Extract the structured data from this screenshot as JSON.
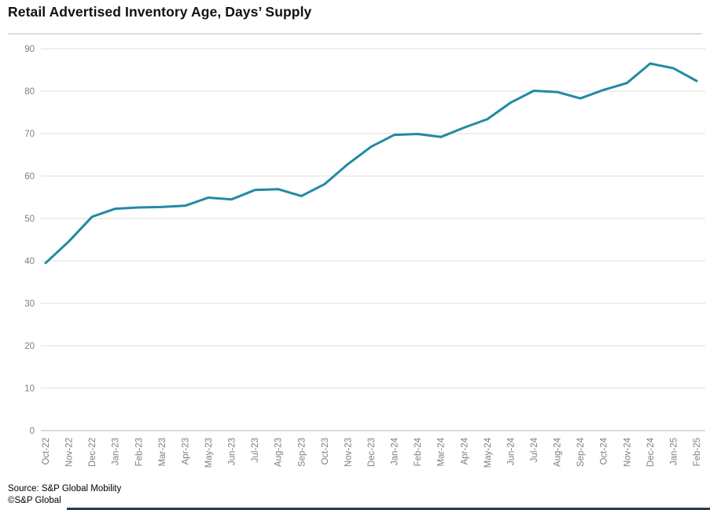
{
  "title": "Retail Advertised Inventory Age, Days’ Supply",
  "footer": {
    "source_line": "Source: S&P Global Mobility",
    "copyright_line": "©S&P Global"
  },
  "colors": {
    "line": "#228AA4",
    "gridline": "#e4e4e4",
    "axis_line": "#c8c8c8",
    "tick_label": "#7f7f7f",
    "footer_bar": "#2b3a55"
  },
  "chart_data": {
    "type": "line",
    "title": "Retail Advertised Inventory Age, Days’ Supply",
    "x": [
      "Oct-22",
      "Nov-22",
      "Dec-22",
      "Jan-23",
      "Feb-23",
      "Mar-23",
      "Apr-23",
      "May-23",
      "Jun-23",
      "Jul-23",
      "Aug-23",
      "Sep-23",
      "Oct-23",
      "Nov-23",
      "Dec-23",
      "Jan-24",
      "Feb-24",
      "Mar-24",
      "Apr-24",
      "May-24",
      "Jun-24",
      "Jul-24",
      "Aug-24",
      "Sep-24",
      "Oct-24",
      "Nov-24",
      "Dec-24",
      "Jan-25",
      "Feb-25"
    ],
    "values": [
      39.5,
      44.6,
      50.4,
      52.3,
      52.6,
      52.7,
      53.0,
      54.9,
      54.5,
      56.7,
      56.9,
      55.3,
      58.1,
      62.8,
      66.9,
      69.7,
      69.9,
      69.2,
      71.4,
      73.4,
      77.3,
      80.1,
      79.8,
      78.3,
      80.3,
      81.9,
      86.5,
      85.4,
      82.4
    ],
    "ylim": [
      0,
      90
    ],
    "ytick_step": 10,
    "xlabel": "",
    "ylabel": "",
    "grid": "horizontal",
    "legend": "none"
  }
}
